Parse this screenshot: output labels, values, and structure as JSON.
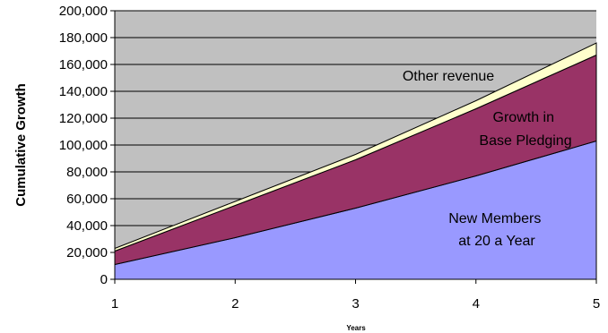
{
  "chart_data": {
    "type": "area",
    "stacked": true,
    "x": [
      1,
      2,
      3,
      4,
      5
    ],
    "xlabel": "Years",
    "ylabel": "Cumulative Growth",
    "ylim": [
      0,
      200000
    ],
    "yticks": [
      "0",
      "20,000",
      "40,000",
      "60,000",
      "80,000",
      "100,000",
      "120,000",
      "140,000",
      "160,000",
      "180,000",
      "200,000"
    ],
    "xticks": [
      "1",
      "2",
      "3",
      "4",
      "5"
    ],
    "grid": true,
    "background": "#c0c0c0",
    "series": [
      {
        "name": "New Members at 20 a Year",
        "values": [
          11000,
          31000,
          53000,
          77000,
          103000
        ],
        "color": "#9999ff"
      },
      {
        "name": "Growth in Base Pledging",
        "values": [
          10000,
          24000,
          36000,
          50000,
          64000
        ],
        "color": "#993366"
      },
      {
        "name": "Other revenue",
        "values": [
          2000,
          3000,
          4000,
          6000,
          9000
        ],
        "color": "#ffffcc"
      }
    ],
    "annotations": [
      {
        "lines": [
          "Other revenue"
        ],
        "series": "Other revenue"
      },
      {
        "lines": [
          "Growth in",
          "Base Pledging"
        ],
        "series": "Growth in Base Pledging"
      },
      {
        "lines": [
          "New Members",
          "at 20 a Year"
        ],
        "series": "New Members at 20 a Year"
      }
    ]
  }
}
